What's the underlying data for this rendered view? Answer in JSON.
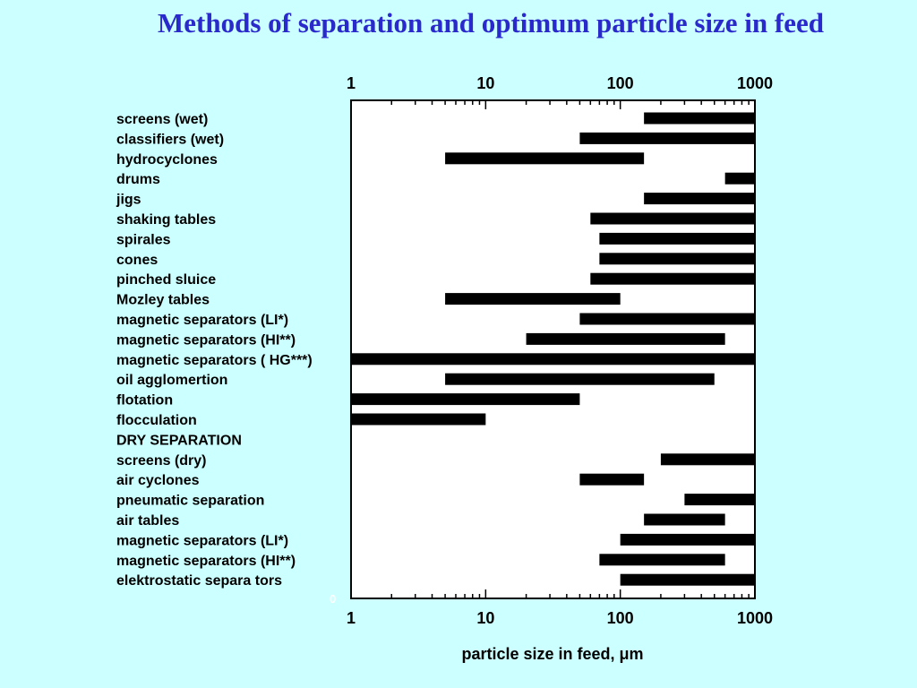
{
  "slide": {
    "title": "Methods of separation and optimum particle size in feed"
  },
  "chart_data": {
    "type": "bar",
    "orientation": "horizontal-range",
    "title": "Methods of separation and optimum particle size in feed",
    "xlabel": "particle size in feed, μm",
    "x_scale": "log",
    "xlim": [
      1,
      1000
    ],
    "x_ticks": [
      1,
      10,
      100,
      1000
    ],
    "x_tick_labels": [
      "1",
      "10",
      "100",
      "1000"
    ],
    "y_axis_zero_label": "0",
    "grid": false,
    "bar_color": "#000000",
    "background_color": "#ffffff",
    "categories": [
      "screens (wet)",
      "classifiers (wet)",
      "hydrocyclones",
      "drums",
      "jigs",
      "shaking tables",
      "spirales",
      "cones",
      "pinched sluice",
      "Mozley tables",
      "magnetic separators (LI*)",
      "magnetic separators (HI**)",
      "magnetic separators ( HG***)",
      "oil agglomertion",
      "flotation",
      "flocculation",
      "DRY SEPARATION",
      "screens (dry)",
      "air cyclones",
      "pneumatic separation",
      "air tables",
      "magnetic separators (LI*)",
      "magnetic separators (HI**)",
      "elektrostatic separa tors"
    ],
    "ranges": [
      [
        150,
        1000
      ],
      [
        50,
        1000
      ],
      [
        5,
        150
      ],
      [
        600,
        1000
      ],
      [
        150,
        1000
      ],
      [
        60,
        1000
      ],
      [
        70,
        1000
      ],
      [
        70,
        1000
      ],
      [
        60,
        1000
      ],
      [
        5,
        100
      ],
      [
        50,
        1000
      ],
      [
        20,
        600
      ],
      [
        1,
        1000
      ],
      [
        5,
        500
      ],
      [
        1,
        50
      ],
      [
        1,
        10
      ],
      null,
      [
        200,
        1000
      ],
      [
        50,
        150
      ],
      [
        300,
        1000
      ],
      [
        150,
        600
      ],
      [
        100,
        1000
      ],
      [
        70,
        600
      ],
      [
        100,
        1000
      ]
    ]
  }
}
